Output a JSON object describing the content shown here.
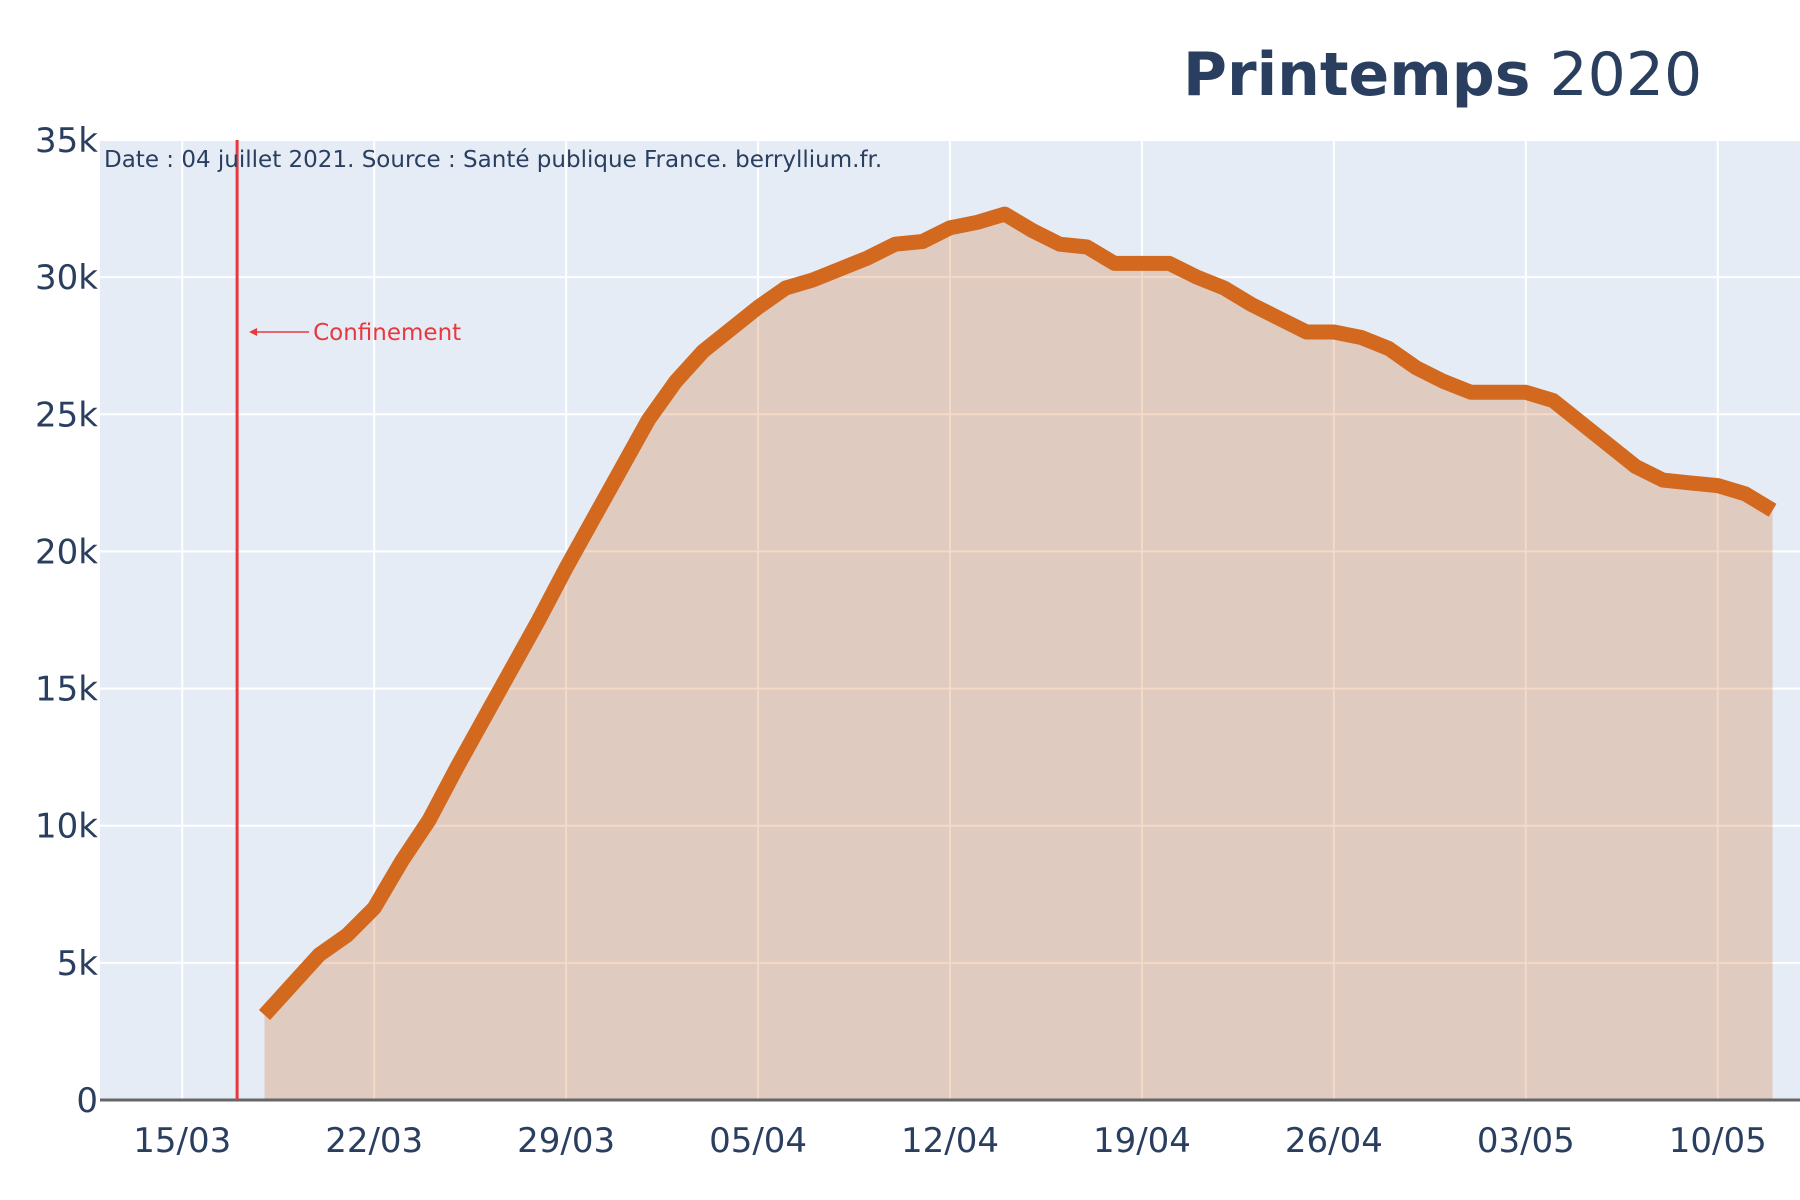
{
  "title": {
    "bold": "Printemps",
    "regular": "2020"
  },
  "source_note": "Date : 04 juillet 2021. Source : Santé publique France. berryllium.fr.",
  "colors": {
    "line": "#d2691e",
    "fill": "rgba(210,105,30,0.25)",
    "plot_bg": "#e5ecf6",
    "grid": "#ffffff",
    "text": "#2a3f5f",
    "annotation": "#e8383d"
  },
  "chart_data": {
    "type": "area",
    "title": "Printemps 2020",
    "x_tick_labels": [
      "15/03",
      "22/03",
      "29/03",
      "05/04",
      "12/04",
      "19/04",
      "26/04",
      "03/05",
      "10/05"
    ],
    "y_tick_labels": [
      "0",
      "5k",
      "10k",
      "15k",
      "20k",
      "25k",
      "30k",
      "35k"
    ],
    "ylim": [
      0,
      35000
    ],
    "x_range_days_from_15_03": [
      -3,
      59
    ],
    "x": [
      "18/03",
      "19/03",
      "20/03",
      "21/03",
      "22/03",
      "23/03",
      "24/03",
      "25/03",
      "26/03",
      "27/03",
      "28/03",
      "29/03",
      "30/03",
      "31/03",
      "01/04",
      "02/04",
      "03/04",
      "04/04",
      "05/04",
      "06/04",
      "07/04",
      "08/04",
      "09/04",
      "10/04",
      "11/04",
      "12/04",
      "13/04",
      "14/04",
      "15/04",
      "16/04",
      "17/04",
      "18/04",
      "19/04",
      "20/04",
      "21/04",
      "22/04",
      "23/04",
      "24/04",
      "25/04",
      "26/04",
      "27/04",
      "28/04",
      "29/04",
      "30/04",
      "01/05",
      "02/05",
      "03/05",
      "04/05",
      "05/05",
      "06/05",
      "07/05",
      "08/05",
      "09/05",
      "10/05",
      "11/05",
      "12/05"
    ],
    "values": [
      3100,
      4200,
      5300,
      6000,
      7000,
      8700,
      10200,
      12100,
      13900,
      15700,
      17500,
      19400,
      21200,
      23000,
      24800,
      26200,
      27300,
      28100,
      28900,
      29600,
      29900,
      30300,
      30700,
      31200,
      31300,
      31800,
      32000,
      32300,
      31700,
      31200,
      31100,
      30500,
      30500,
      30500,
      30000,
      29600,
      29000,
      28500,
      28000,
      28000,
      27800,
      27400,
      26700,
      26200,
      25800,
      25800,
      25800,
      25500,
      24700,
      23900,
      23100,
      22600,
      22500,
      22400,
      22100,
      21500
    ],
    "grid": true,
    "annotations": [
      {
        "type": "vline",
        "x": "17/03",
        "label": "Confinement",
        "y": 28000
      }
    ]
  }
}
